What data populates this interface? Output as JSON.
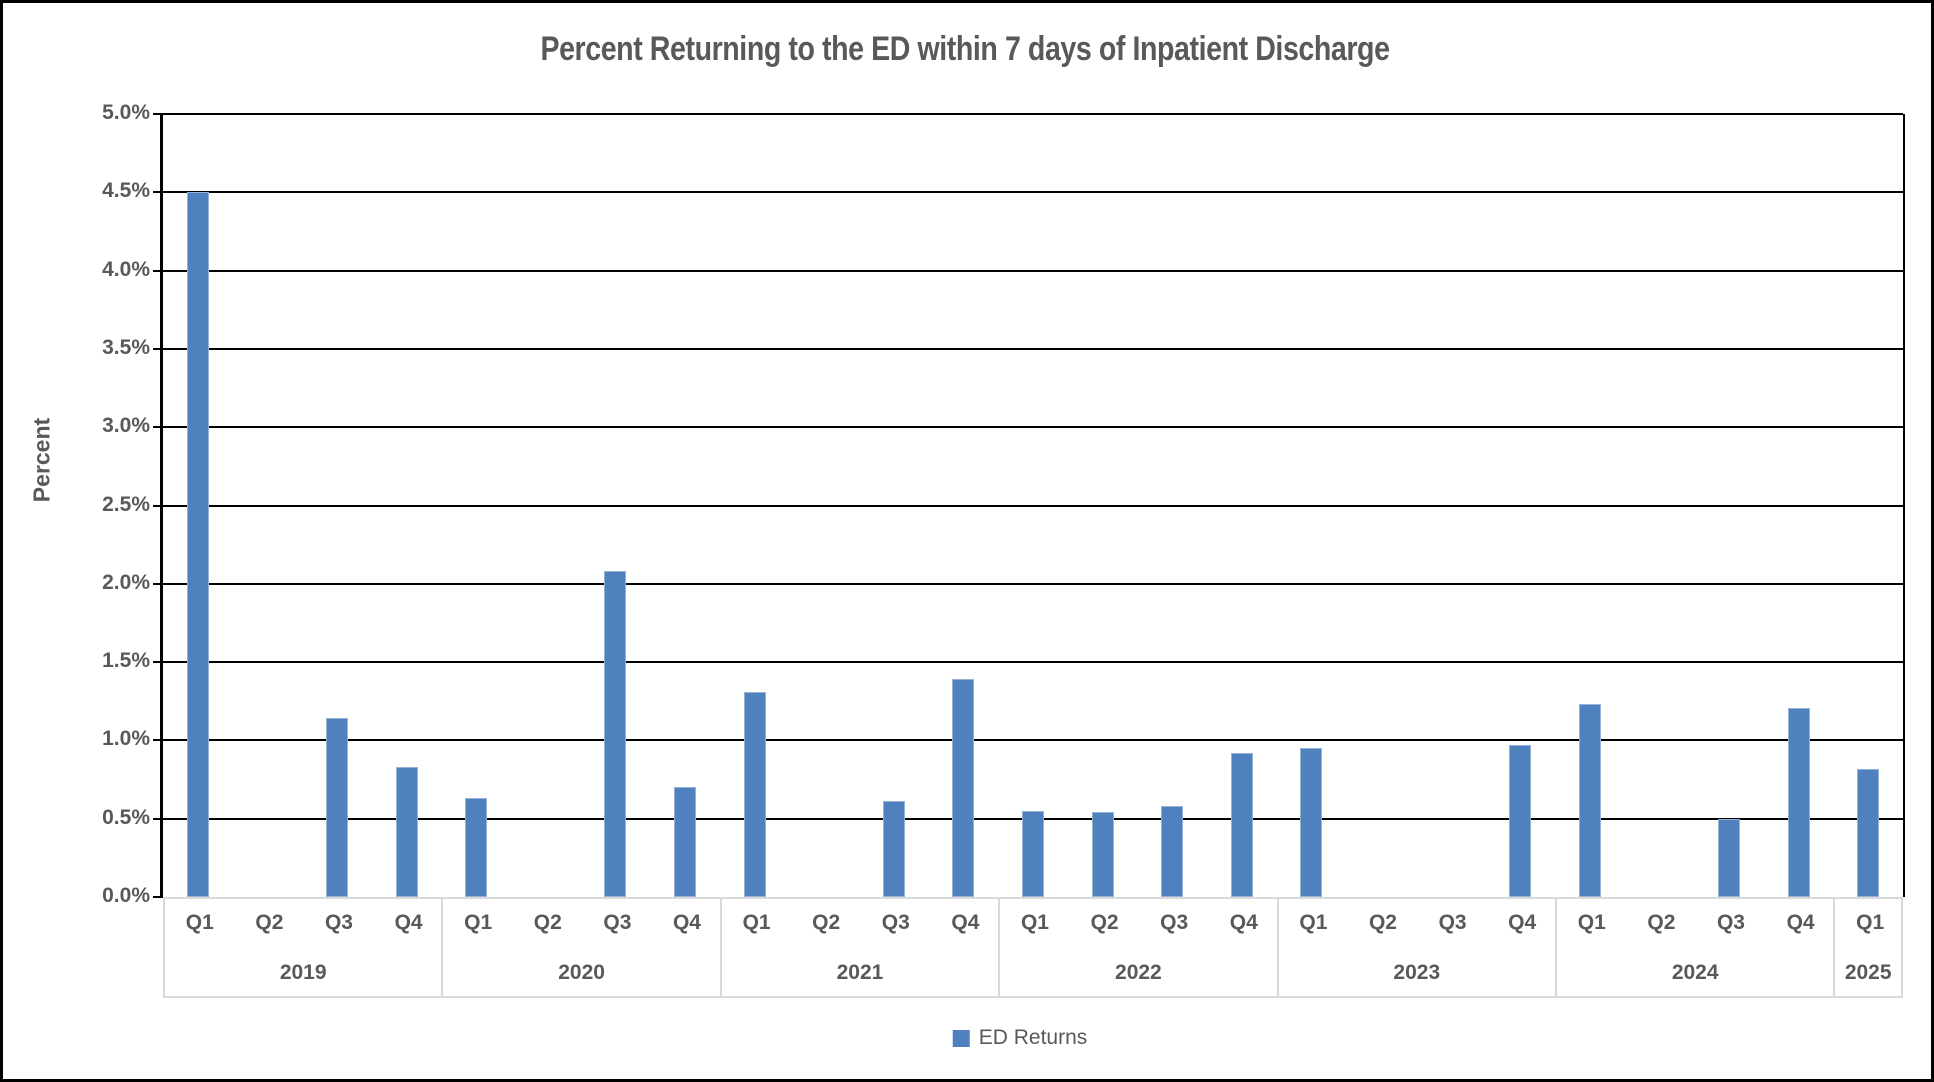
{
  "chart_data": {
    "type": "bar",
    "title": "Percent Returning to the ED within 7 days of Inpatient Discharge",
    "xlabel": "",
    "ylabel": "Percent",
    "ylim": [
      0,
      5.0
    ],
    "ytick_step": 0.5,
    "ytick_suffix": "%",
    "grid": "horizontal",
    "legend_position": "bottom-center",
    "text_color": "#595959",
    "gridline_color": "#000000",
    "category_axis_color": "#d9d9d9",
    "series": [
      {
        "name": "ED Returns",
        "color": "#4E81BD"
      }
    ],
    "groups": [
      {
        "year": "2019",
        "quarters": [
          "Q1",
          "Q2",
          "Q3",
          "Q4"
        ],
        "values": [
          4.5,
          null,
          1.14,
          0.83
        ]
      },
      {
        "year": "2020",
        "quarters": [
          "Q1",
          "Q2",
          "Q3",
          "Q4"
        ],
        "values": [
          0.63,
          null,
          2.08,
          0.7
        ]
      },
      {
        "year": "2021",
        "quarters": [
          "Q1",
          "Q2",
          "Q3",
          "Q4"
        ],
        "values": [
          1.31,
          null,
          0.61,
          1.39
        ]
      },
      {
        "year": "2022",
        "quarters": [
          "Q1",
          "Q2",
          "Q3",
          "Q4"
        ],
        "values": [
          0.55,
          0.54,
          0.58,
          0.92
        ]
      },
      {
        "year": "2023",
        "quarters": [
          "Q1",
          "Q2",
          "Q3",
          "Q4"
        ],
        "values": [
          0.95,
          null,
          null,
          0.97
        ]
      },
      {
        "year": "2024",
        "quarters": [
          "Q1",
          "Q2",
          "Q3",
          "Q4"
        ],
        "values": [
          1.23,
          null,
          0.5,
          1.21
        ]
      },
      {
        "year": "2025",
        "quarters": [
          "Q1"
        ],
        "values": [
          0.82
        ]
      }
    ]
  }
}
